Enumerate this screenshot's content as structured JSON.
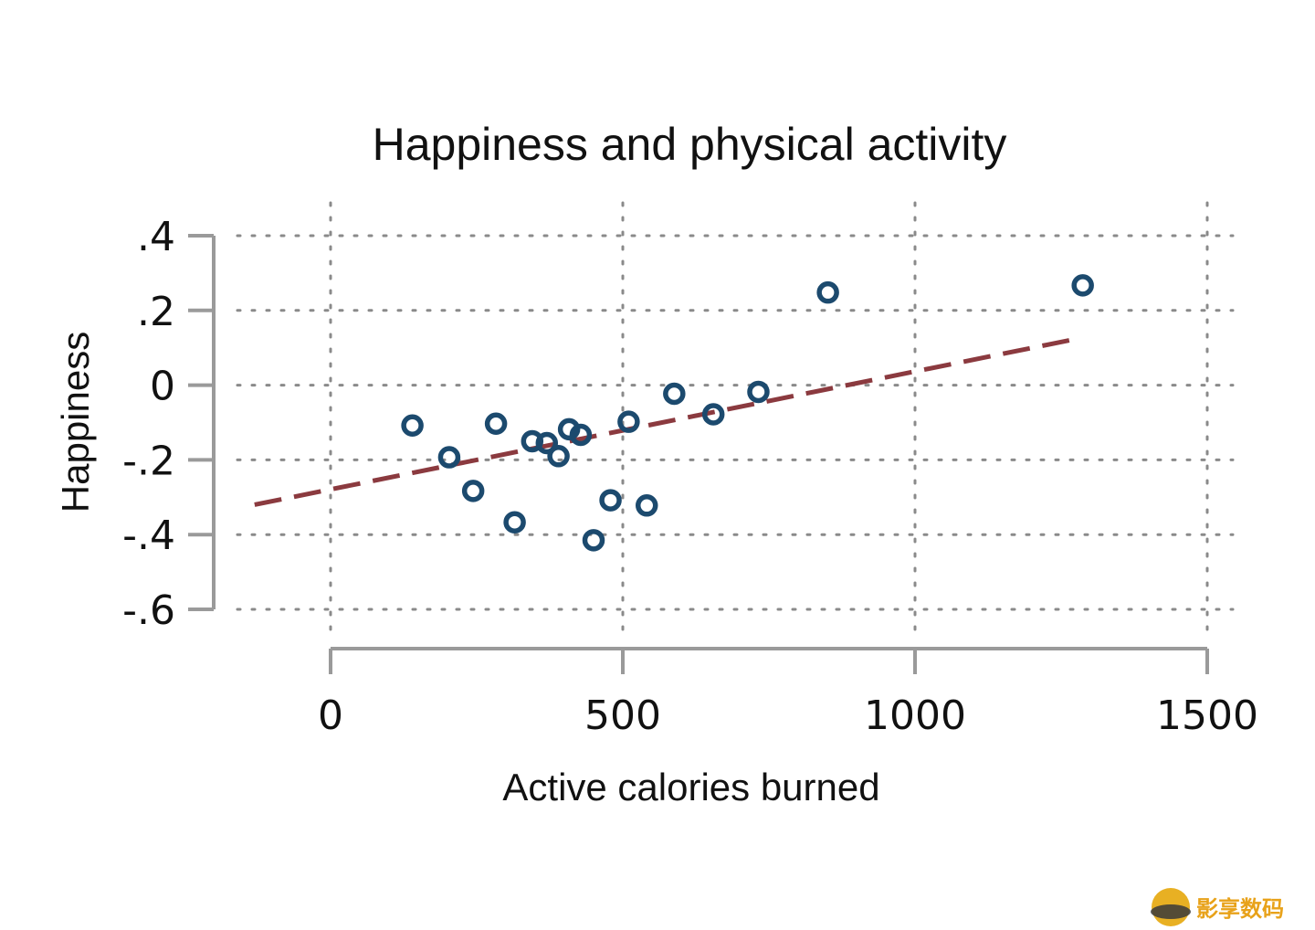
{
  "chart_data": {
    "type": "scatter",
    "title": "Happiness and physical activity",
    "xlabel": "Active calories burned",
    "ylabel": "Happiness",
    "xlim": [
      0,
      1500
    ],
    "ylim": [
      -0.6,
      0.4
    ],
    "x_ticks": [
      0,
      500,
      1000,
      1500
    ],
    "x_tick_labels": [
      "0",
      "500",
      "1000",
      "1500"
    ],
    "y_ticks": [
      0.4,
      0.2,
      0,
      -0.2,
      -0.4,
      -0.6
    ],
    "y_tick_labels": [
      ".4",
      ".2",
      "0",
      "-.2",
      "-.4",
      "-.6"
    ],
    "grid": true,
    "points": [
      {
        "x": 140,
        "y": -0.108
      },
      {
        "x": 203,
        "y": -0.193
      },
      {
        "x": 244,
        "y": -0.283
      },
      {
        "x": 283,
        "y": -0.103
      },
      {
        "x": 315,
        "y": -0.367
      },
      {
        "x": 345,
        "y": -0.15
      },
      {
        "x": 370,
        "y": -0.155
      },
      {
        "x": 390,
        "y": -0.19
      },
      {
        "x": 408,
        "y": -0.118
      },
      {
        "x": 428,
        "y": -0.133
      },
      {
        "x": 450,
        "y": -0.415
      },
      {
        "x": 479,
        "y": -0.308
      },
      {
        "x": 510,
        "y": -0.098
      },
      {
        "x": 541,
        "y": -0.322
      },
      {
        "x": 588,
        "y": -0.023
      },
      {
        "x": 655,
        "y": -0.078
      },
      {
        "x": 732,
        "y": -0.018
      },
      {
        "x": 851,
        "y": 0.248
      },
      {
        "x": 1287,
        "y": 0.267
      }
    ],
    "fit_line": {
      "x": [
        -130,
        1280
      ],
      "y": [
        -0.32,
        0.125
      ]
    },
    "colors": {
      "points": "#1c4a6e",
      "fit_line": "#8b3a3f",
      "axis": "#9a9a9a",
      "grid": "#8a8a8a"
    }
  },
  "watermark": {
    "text": "影享数码"
  }
}
